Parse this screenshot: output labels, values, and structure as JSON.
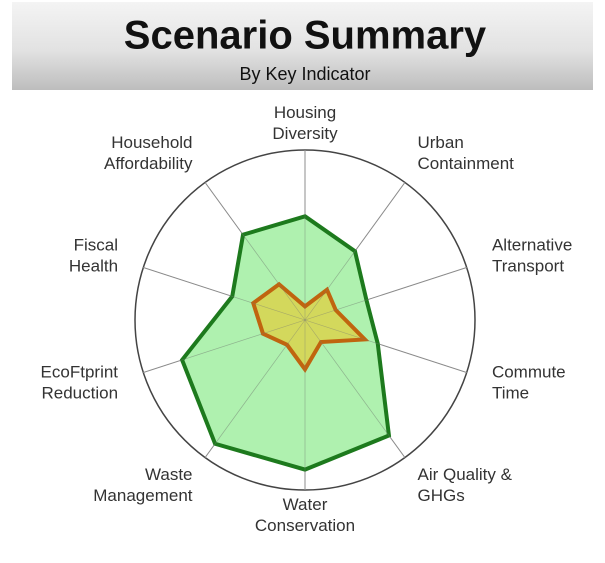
{
  "chart_data": {
    "type": "radar",
    "title": "Scenario Summary",
    "subtitle": "By Key Indicator",
    "categories": [
      [
        "Housing",
        "Diversity"
      ],
      [
        "Urban",
        "Containment"
      ],
      [
        "Alternative",
        "Transport"
      ],
      [
        "Commute",
        "Time"
      ],
      [
        "Air Quality &",
        "GHGs"
      ],
      [
        "Water",
        "Conservation"
      ],
      [
        "Waste",
        "Management"
      ],
      [
        "EcoFtprint",
        "Reduction"
      ],
      [
        "Fiscal",
        "Health"
      ],
      [
        "Household",
        "Affordability"
      ]
    ],
    "ylim": [
      0,
      100
    ],
    "series": [
      {
        "color": "#1d7a1d",
        "fill": "#a6efa6",
        "values": [
          61,
          50,
          38,
          45,
          84,
          88,
          90,
          76,
          45,
          62
        ]
      },
      {
        "color": "#c0650f",
        "fill": "#d9d44e",
        "values": [
          8,
          22,
          19,
          37,
          16,
          29,
          18,
          26,
          32,
          26
        ]
      }
    ]
  }
}
